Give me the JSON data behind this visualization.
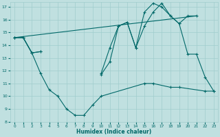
{
  "xlabel": "Humidex (Indice chaleur)",
  "bg_color": "#c0e0e0",
  "line_color": "#006868",
  "grid_color": "#a0cccc",
  "xlim": [
    -0.5,
    23.5
  ],
  "ylim": [
    8,
    17.4
  ],
  "yticks": [
    8,
    9,
    10,
    11,
    12,
    13,
    14,
    15,
    16,
    17
  ],
  "xticks": [
    0,
    1,
    2,
    3,
    4,
    5,
    6,
    7,
    8,
    9,
    10,
    11,
    12,
    13,
    14,
    15,
    16,
    17,
    18,
    19,
    20,
    21,
    22,
    23
  ],
  "line1": {
    "x": [
      0,
      1,
      2,
      3,
      10,
      11,
      12,
      13,
      14,
      15,
      16,
      17,
      18,
      19,
      20,
      21,
      22,
      23
    ],
    "y": [
      14.6,
      14.6,
      13.4,
      13.5,
      11.8,
      13.8,
      15.5,
      15.8,
      13.8,
      15.5,
      16.6,
      17.3,
      16.3,
      15.7,
      13.3,
      13.3,
      11.5,
      10.4
    ]
  },
  "line2": {
    "x": [
      0,
      1,
      2,
      3,
      10,
      11,
      12,
      13,
      14,
      15,
      16,
      17,
      18,
      19,
      20,
      21
    ],
    "y": [
      14.6,
      14.6,
      13.4,
      13.5,
      11.7,
      12.7,
      15.5,
      15.8,
      13.8,
      16.6,
      17.3,
      17.0,
      16.3,
      15.7,
      16.3,
      16.3
    ]
  },
  "line3": {
    "x": [
      0,
      1,
      2,
      3,
      4,
      5,
      6,
      7,
      8,
      9,
      10,
      15,
      16,
      18,
      19,
      22,
      23
    ],
    "y": [
      14.6,
      14.6,
      13.4,
      11.8,
      10.5,
      10.0,
      9.0,
      8.5,
      8.5,
      9.3,
      10.0,
      11.0,
      11.0,
      10.7,
      10.7,
      10.4,
      10.4
    ]
  },
  "line_straight": {
    "x": [
      0,
      21
    ],
    "y": [
      14.6,
      16.3
    ]
  }
}
